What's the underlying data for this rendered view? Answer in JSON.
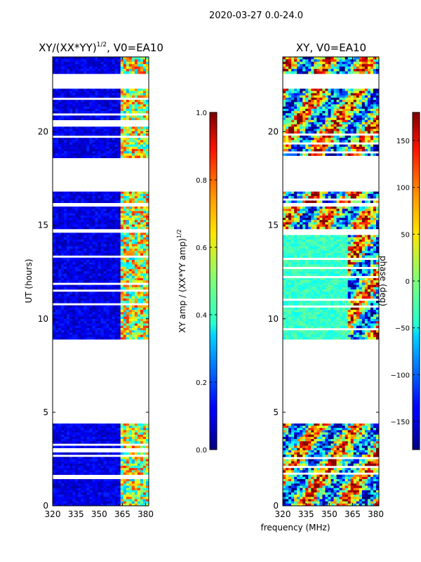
{
  "figure_title": "2020-03-27 0.0-24.0",
  "chart_data": [
    {
      "type": "heatmap",
      "title": "XY/(XX*YY)^1/2, V0=EA10",
      "title_main": "XY/(XX*YY)",
      "title_sup": "1/2",
      "title_rest": ", V0=EA10",
      "xlabel": "",
      "ylabel": "UT (hours)",
      "xlim": [
        320,
        382
      ],
      "ylim": [
        0,
        24
      ],
      "xticks": [
        320,
        335,
        350,
        365,
        380
      ],
      "yticks": [
        0,
        5,
        10,
        15,
        20
      ],
      "data_blocks_hours": [
        [
          0.0,
          4.4
        ],
        [
          8.9,
          14.6
        ],
        [
          14.8,
          16.0
        ],
        [
          16.2,
          16.8
        ],
        [
          18.6,
          22.3
        ],
        [
          23.1,
          24.0
        ]
      ],
      "bright_band_mhz": [
        363,
        382
      ],
      "colorbar": {
        "label": "XY amp / (XX*YY amp)^1/2",
        "label_main": "XY amp / (XX*YY amp)",
        "label_sup": "1/2",
        "min": 0.0,
        "max": 1.0,
        "ticks": [
          "0.0",
          "0.2",
          "0.4",
          "0.6",
          "0.8",
          "1.0"
        ],
        "tick_values": [
          0.0,
          0.2,
          0.4,
          0.6,
          0.8,
          1.0
        ]
      }
    },
    {
      "type": "heatmap",
      "title": "XY, V0=EA10",
      "xlabel": "frequency (MHz)",
      "ylabel": "",
      "xlim": [
        320,
        382
      ],
      "ylim": [
        0,
        24
      ],
      "xticks": [
        320,
        335,
        350,
        365,
        380
      ],
      "yticks": [
        0,
        5,
        10,
        15,
        20
      ],
      "data_blocks_hours": [
        [
          0.0,
          4.4
        ],
        [
          8.9,
          14.6
        ],
        [
          14.8,
          16.0
        ],
        [
          16.2,
          16.8
        ],
        [
          18.6,
          22.3
        ],
        [
          23.1,
          24.0
        ]
      ],
      "colorbar": {
        "label": "phase (deg)",
        "min": -180,
        "max": 180,
        "ticks": [
          "−150",
          "−100",
          "−50",
          "0",
          "50",
          "100",
          "150"
        ],
        "tick_values": [
          -150,
          -100,
          -50,
          0,
          50,
          100,
          150
        ]
      }
    }
  ]
}
